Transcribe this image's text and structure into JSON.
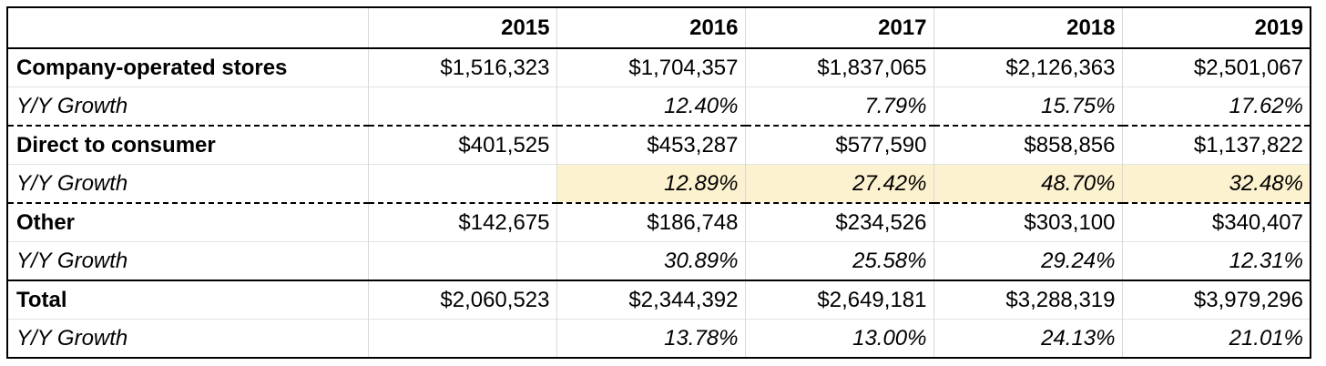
{
  "table": {
    "header": {
      "corner": "",
      "years": [
        "2015",
        "2016",
        "2017",
        "2018",
        "2019"
      ]
    },
    "rows": [
      {
        "label": "Company-operated stores",
        "values": [
          "$1,516,323",
          "$1,704,357",
          "$1,837,065",
          "$2,126,363",
          "$2,501,067"
        ],
        "growth_label": "Y/Y Growth",
        "growth": [
          "",
          "12.40%",
          "7.79%",
          "15.75%",
          "17.62%"
        ]
      },
      {
        "label": "Direct to consumer",
        "values": [
          "$401,525",
          "$453,287",
          "$577,590",
          "$858,856",
          "$1,137,822"
        ],
        "growth_label": "Y/Y Growth",
        "growth": [
          "",
          "12.89%",
          "27.42%",
          "48.70%",
          "32.48%"
        ],
        "growth_highlight": "#fdf2cf"
      },
      {
        "label": "Other",
        "values": [
          "$142,675",
          "$186,748",
          "$234,526",
          "$303,100",
          "$340,407"
        ],
        "growth_label": "Y/Y Growth",
        "growth": [
          "",
          "30.89%",
          "25.58%",
          "29.24%",
          "12.31%"
        ]
      },
      {
        "label": "Total",
        "values": [
          "$2,060,523",
          "$2,344,392",
          "$2,649,181",
          "$3,288,319",
          "$3,979,296"
        ],
        "growth_label": "Y/Y Growth",
        "growth": [
          "",
          "13.78%",
          "13.00%",
          "24.13%",
          "21.01%"
        ]
      }
    ]
  }
}
